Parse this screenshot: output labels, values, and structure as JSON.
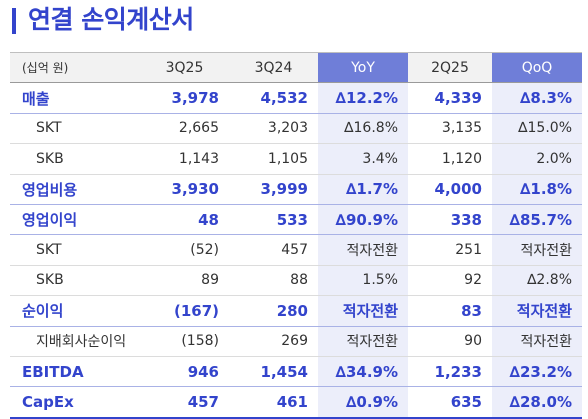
{
  "title": "연결 손익계산서",
  "table": {
    "headers": [
      "(십억 원)",
      "3Q25",
      "3Q24",
      "YoY",
      "2Q25",
      "QoQ"
    ],
    "rows": [
      {
        "type": "major",
        "label": "매출",
        "values": [
          "3,978",
          "4,532",
          "∆12.2%",
          "4,339",
          "∆8.3%"
        ]
      },
      {
        "type": "sub",
        "label": "SKT",
        "values": [
          "2,665",
          "3,203",
          "∆16.8%",
          "3,135",
          "∆15.0%"
        ]
      },
      {
        "type": "sub",
        "label": "SKB",
        "values": [
          "1,143",
          "1,105",
          "3.4%",
          "1,120",
          "2.0%"
        ]
      },
      {
        "type": "major",
        "label": "영업비용",
        "values": [
          "3,930",
          "3,999",
          "∆1.7%",
          "4,000",
          "∆1.8%"
        ]
      },
      {
        "type": "major",
        "label": "영업이익",
        "values": [
          "48",
          "533",
          "∆90.9%",
          "338",
          "∆85.7%"
        ]
      },
      {
        "type": "sub",
        "label": "SKT",
        "values": [
          "(52)",
          "457",
          "적자전환",
          "251",
          "적자전환"
        ]
      },
      {
        "type": "sub",
        "label": "SKB",
        "values": [
          "89",
          "88",
          "1.5%",
          "92",
          "∆2.8%"
        ]
      },
      {
        "type": "major",
        "label": "순이익",
        "values": [
          "(167)",
          "280",
          "적자전환",
          "83",
          "적자전환"
        ]
      },
      {
        "type": "sub",
        "label": "지배회사순이익",
        "values": [
          "(158)",
          "269",
          "적자전환",
          "90",
          "적자전환"
        ]
      },
      {
        "type": "major",
        "label": "EBITDA",
        "values": [
          "946",
          "1,454",
          "∆34.9%",
          "1,233",
          "∆23.2%"
        ]
      },
      {
        "type": "major",
        "label": "CapEx",
        "values": [
          "457",
          "461",
          "∆0.9%",
          "635",
          "∆28.0%"
        ]
      }
    ]
  },
  "colors": {
    "accent": "#3344cc",
    "highlight_header": "#6f7ed8",
    "highlight_cell": "#eceefa"
  }
}
